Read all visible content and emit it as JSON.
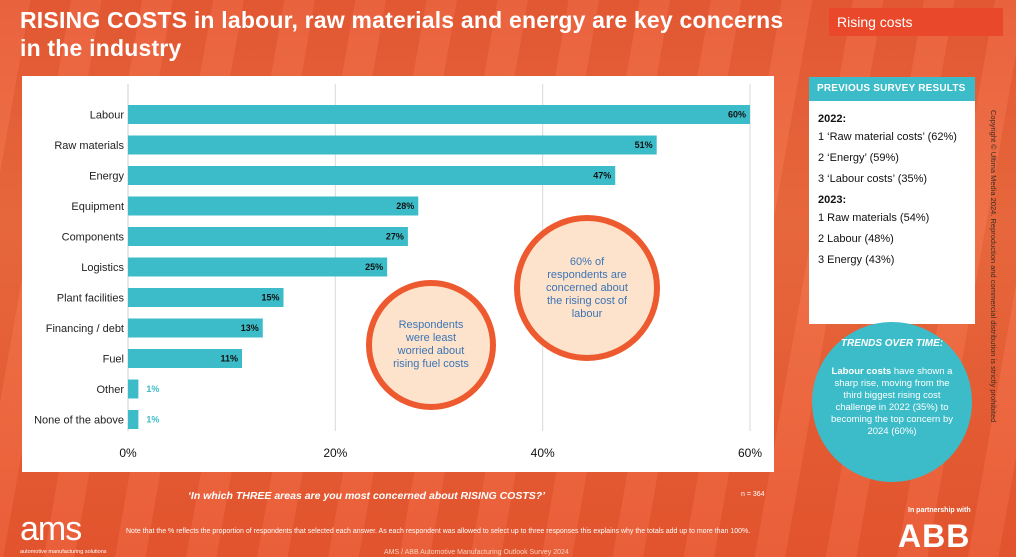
{
  "title": "RISING COSTS in labour, raw materials and energy are key concerns in the industry",
  "tag": "Rising costs",
  "chart_data": {
    "type": "bar",
    "orientation": "horizontal",
    "categories": [
      "Labour",
      "Raw materials",
      "Energy",
      "Equipment",
      "Components",
      "Logistics",
      "Plant facilities",
      "Financing / debt",
      "Fuel",
      "Other",
      "None of the above"
    ],
    "values": [
      60,
      51,
      47,
      28,
      27,
      25,
      15,
      13,
      11,
      1,
      1
    ],
    "value_labels": [
      "60%",
      "51%",
      "47%",
      "28%",
      "27%",
      "25%",
      "15%",
      "13%",
      "11%",
      "1%",
      "1%"
    ],
    "xlim": [
      0,
      60
    ],
    "xticks": [
      0,
      20,
      40,
      60
    ],
    "xtick_labels": [
      "0%",
      "20%",
      "40%",
      "60%"
    ],
    "grid": true,
    "bar_color": "#3bbcc8"
  },
  "bubbles": {
    "fuel": "Respondents were least worried about rising fuel costs",
    "labour": "60% of respondents are concerned about the rising cost of labour"
  },
  "previous": {
    "header": "PREVIOUS SURVEY RESULTS",
    "year1": "2022:",
    "items1": [
      "1 ‘Raw material costs’ (62%)",
      "2 ‘Energy’ (59%)",
      "3 ‘Labour costs’ (35%)"
    ],
    "year2": "2023:",
    "items2": [
      "1 Raw materials (54%)",
      "2 Labour (48%)",
      "3 Energy (43%)"
    ]
  },
  "trends": {
    "header": "TRENDS OVER TIME:",
    "bold": "Labour costs",
    "text": " have shown a sharp rise, moving from the third biggest rising cost challenge in 2022 (35%) to becoming the top concern by 2024 (60%)"
  },
  "copyright": "Copyright © Ultima Media 2024. Reproduction and commercial distribution is strictly prohibited",
  "question": "‘In which THREE areas are you most concerned about RISING COSTS?’",
  "n": "n = 364",
  "note": "Note that the % reflects the proportion of respondents that selected each answer. As each respondent was allowed to select up to three responses this explains why the totals add up to more than 100%.",
  "footer": "AMS / ABB Automotive Manufacturing Outlook Survey 2024",
  "logo": {
    "ams": "ams",
    "ams_sub": "automotive manufacturing solutions",
    "partner": "In partnership with",
    "abb": "ABB"
  },
  "colors": {
    "accent": "#ee5a2f",
    "teal": "#3bbcc8"
  }
}
